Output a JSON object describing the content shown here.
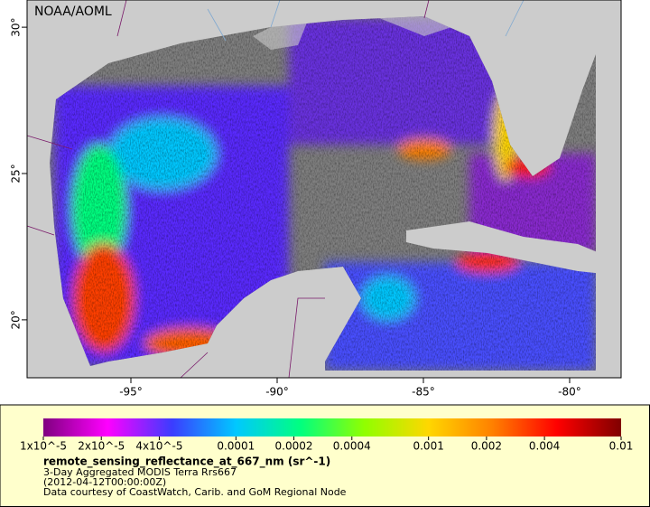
{
  "header": {
    "label": "NOAA/AOML"
  },
  "map": {
    "lonlim": [
      -98.55,
      -78.24
    ],
    "latlim": [
      18.02,
      30.93
    ],
    "xticks": [
      {
        "value": -95,
        "label": "-95°"
      },
      {
        "value": -90,
        "label": "-90°"
      },
      {
        "value": -85,
        "label": "-85°"
      },
      {
        "value": -80,
        "label": "-80°"
      }
    ],
    "yticks": [
      {
        "value": 20,
        "label": "20°"
      },
      {
        "value": 25,
        "label": "25°"
      },
      {
        "value": 30,
        "label": "30°"
      }
    ]
  },
  "colorbar": {
    "scale": "log",
    "lim": [
      1e-05,
      0.01
    ],
    "ticks": [
      {
        "value": 1e-05,
        "label": "1x10^-5"
      },
      {
        "value": 2e-05,
        "label": "2x10^-5"
      },
      {
        "value": 4e-05,
        "label": "4x10^-5"
      },
      0.0001,
      0.0002,
      0.0004,
      0.001,
      0.002,
      0.004,
      0.01
    ],
    "colors": [
      "#800080",
      "#ff00ff",
      "#3c3cff",
      "#00c8ff",
      "#00ff80",
      "#90ff00",
      "#ffd700",
      "#ff8000",
      "#ff0000",
      "#800000"
    ]
  },
  "caption": {
    "title": "remote_sensing_reflectance_at_667_nm (sr^-1)",
    "lines": [
      "3-Day Aggregated MODIS Terra Rrs667",
      "(2012-04-12T00:00:00Z)",
      "Data courtesy of CoastWatch, Carib. and GoM Regional Node"
    ]
  }
}
